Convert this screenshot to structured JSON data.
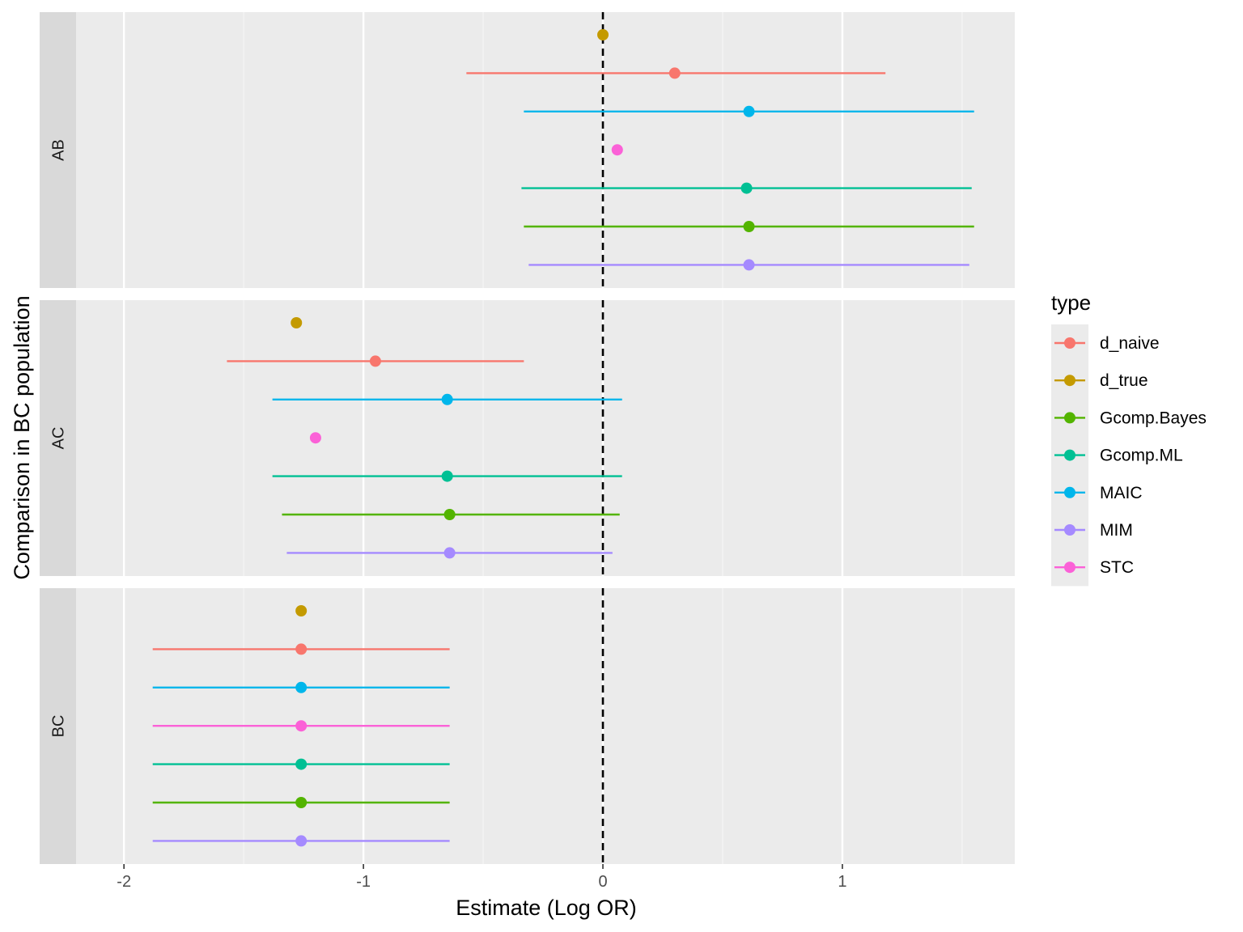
{
  "chart_data": {
    "type": "scatter",
    "subtype": "forest-plot-with-error-bars",
    "xlabel": "Estimate (Log OR)",
    "ylabel": "Comparison in BC population",
    "xlim": [
      -2.2,
      1.72
    ],
    "x_ticks": [
      -2,
      -1,
      0,
      1
    ],
    "x_tick_labels": [
      "-2",
      "-1",
      "0",
      "1"
    ],
    "reference_line": {
      "x": 0,
      "style": "dashed"
    },
    "grid": true,
    "legend": {
      "title": "type",
      "placement": "right"
    },
    "row_order": [
      "d_true",
      "d_naive",
      "MAIC",
      "STC",
      "Gcomp.ML",
      "Gcomp.Bayes",
      "MIM"
    ],
    "series": [
      {
        "name": "d_naive",
        "color": "#F8766D"
      },
      {
        "name": "d_true",
        "color": "#C49A00"
      },
      {
        "name": "Gcomp.Bayes",
        "color": "#53B400"
      },
      {
        "name": "Gcomp.ML",
        "color": "#00C094"
      },
      {
        "name": "MAIC",
        "color": "#00B6EB"
      },
      {
        "name": "MIM",
        "color": "#A58AFF"
      },
      {
        "name": "STC",
        "color": "#FB61D7"
      }
    ],
    "panels": [
      {
        "label": "AB",
        "points": [
          {
            "type": "d_true",
            "estimate": 0.0
          },
          {
            "type": "d_naive",
            "estimate": 0.3,
            "lower": -0.57,
            "upper": 1.18
          },
          {
            "type": "MAIC",
            "estimate": 0.61,
            "lower": -0.33,
            "upper": 1.55
          },
          {
            "type": "STC",
            "estimate": 0.06
          },
          {
            "type": "Gcomp.ML",
            "estimate": 0.6,
            "lower": -0.34,
            "upper": 1.54
          },
          {
            "type": "Gcomp.Bayes",
            "estimate": 0.61,
            "lower": -0.33,
            "upper": 1.55
          },
          {
            "type": "MIM",
            "estimate": 0.61,
            "lower": -0.31,
            "upper": 1.53
          }
        ]
      },
      {
        "label": "AC",
        "points": [
          {
            "type": "d_true",
            "estimate": -1.28
          },
          {
            "type": "d_naive",
            "estimate": -0.95,
            "lower": -1.57,
            "upper": -0.33
          },
          {
            "type": "MAIC",
            "estimate": -0.65,
            "lower": -1.38,
            "upper": 0.08
          },
          {
            "type": "STC",
            "estimate": -1.2
          },
          {
            "type": "Gcomp.ML",
            "estimate": -0.65,
            "lower": -1.38,
            "upper": 0.08
          },
          {
            "type": "Gcomp.Bayes",
            "estimate": -0.64,
            "lower": -1.34,
            "upper": 0.07
          },
          {
            "type": "MIM",
            "estimate": -0.64,
            "lower": -1.32,
            "upper": 0.04
          }
        ]
      },
      {
        "label": "BC",
        "points": [
          {
            "type": "d_true",
            "estimate": -1.26
          },
          {
            "type": "d_naive",
            "estimate": -1.26,
            "lower": -1.88,
            "upper": -0.64
          },
          {
            "type": "MAIC",
            "estimate": -1.26,
            "lower": -1.88,
            "upper": -0.64
          },
          {
            "type": "STC",
            "estimate": -1.26,
            "lower": -1.88,
            "upper": -0.64
          },
          {
            "type": "Gcomp.ML",
            "estimate": -1.26,
            "lower": -1.88,
            "upper": -0.64
          },
          {
            "type": "Gcomp.Bayes",
            "estimate": -1.26,
            "lower": -1.88,
            "upper": -0.64
          },
          {
            "type": "MIM",
            "estimate": -1.26,
            "lower": -1.88,
            "upper": -0.64
          }
        ]
      }
    ]
  }
}
